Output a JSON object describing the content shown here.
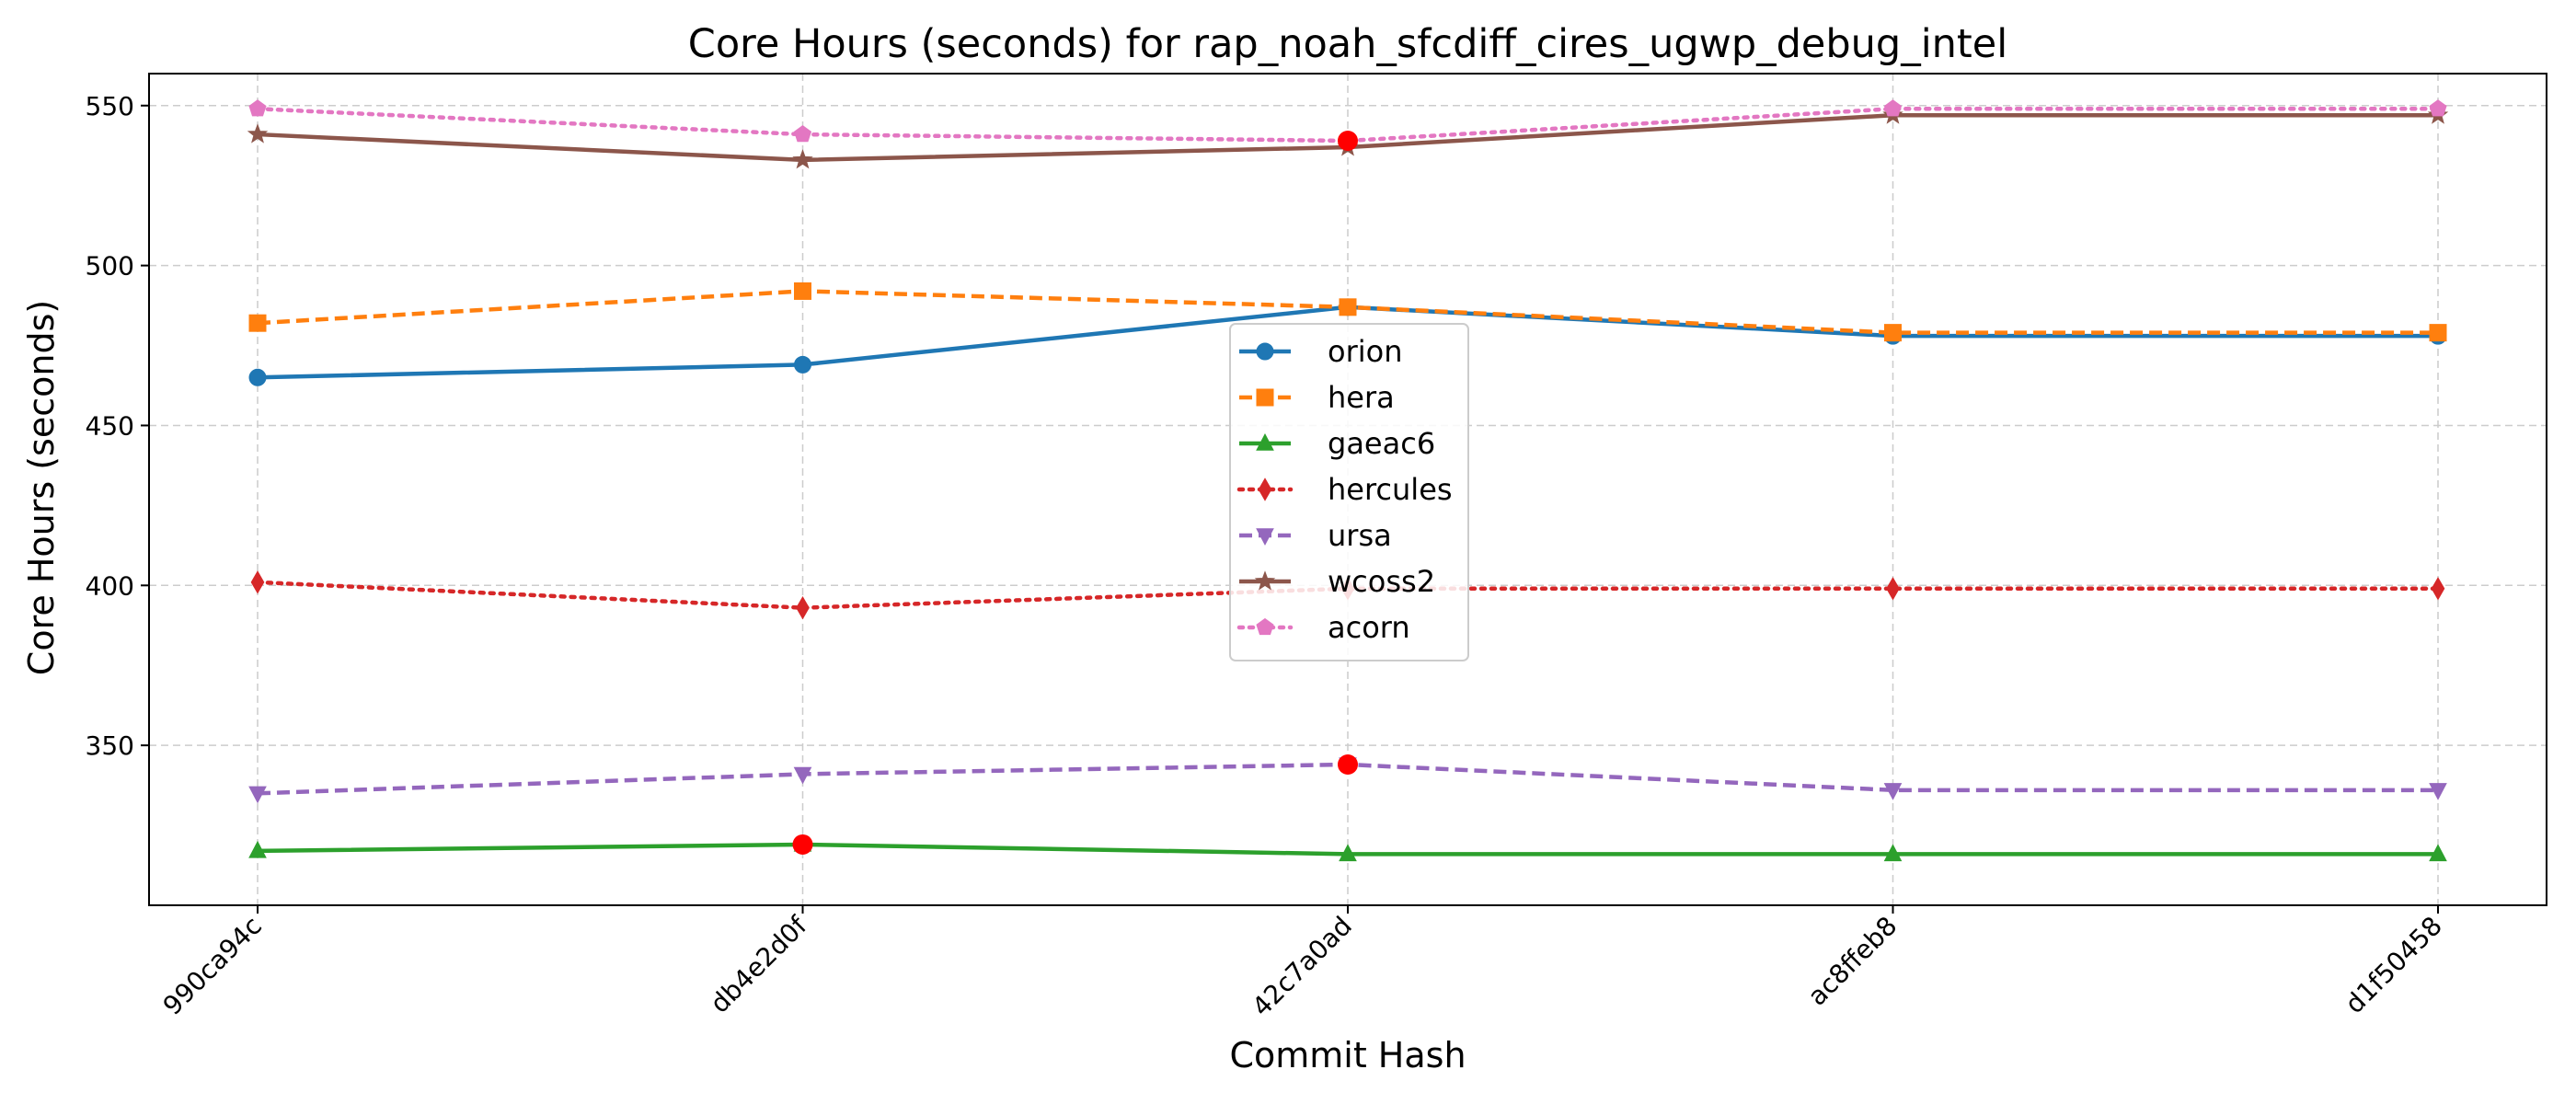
{
  "chart_data": {
    "type": "line",
    "title": "Core Hours (seconds) for rap_noah_sfcdiff_cires_ugwp_debug_intel",
    "xlabel": "Commit Hash",
    "ylabel": "Core Hours (seconds)",
    "categories": [
      "990ca94c",
      "db4e2d0f",
      "42c7a0ad",
      "ac8ffeb8",
      "d1f50458"
    ],
    "ylim": [
      300,
      560
    ],
    "yticks": [
      350,
      400,
      450,
      500,
      550
    ],
    "grid": true,
    "legend_position": "center",
    "series": [
      {
        "name": "orion",
        "values": [
          465,
          469,
          487,
          478,
          478
        ],
        "color": "#1f77b4",
        "marker": "circle",
        "linestyle": "solid"
      },
      {
        "name": "hera",
        "values": [
          482,
          492,
          487,
          479,
          479
        ],
        "color": "#ff7f0e",
        "marker": "square",
        "linestyle": "dashed"
      },
      {
        "name": "gaeac6",
        "values": [
          317,
          319,
          316,
          316,
          316
        ],
        "color": "#2ca02c",
        "marker": "triangle-up",
        "linestyle": "solid"
      },
      {
        "name": "hercules",
        "values": [
          401,
          393,
          399,
          399,
          399
        ],
        "color": "#d62728",
        "marker": "diamond",
        "linestyle": "dotted"
      },
      {
        "name": "ursa",
        "values": [
          335,
          341,
          344,
          336,
          336
        ],
        "color": "#9467bd",
        "marker": "triangle-down",
        "linestyle": "dashed"
      },
      {
        "name": "wcoss2",
        "values": [
          541,
          533,
          537,
          547,
          547
        ],
        "color": "#8c564b",
        "marker": "star",
        "linestyle": "solid"
      },
      {
        "name": "acorn",
        "values": [
          549,
          541,
          539,
          549,
          549
        ],
        "color": "#e377c2",
        "marker": "pentagon",
        "linestyle": "dotted"
      }
    ],
    "highlights": [
      {
        "category": "db4e2d0f",
        "value": 319,
        "color": "#ff0000"
      },
      {
        "category": "42c7a0ad",
        "value": 344,
        "color": "#ff0000"
      },
      {
        "category": "42c7a0ad",
        "value": 539,
        "color": "#ff0000"
      }
    ]
  }
}
